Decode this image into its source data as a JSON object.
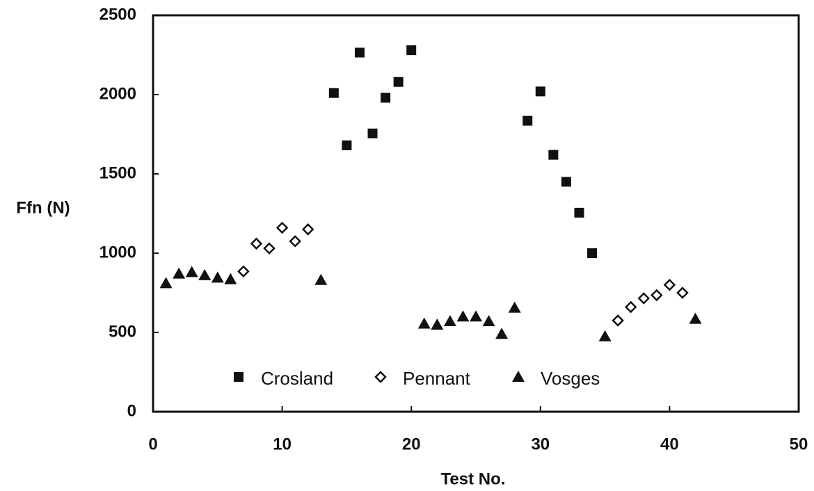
{
  "chart_data": {
    "type": "scatter",
    "xlabel": "Test No.",
    "ylabel": "Ffn (N)",
    "xlim": [
      0,
      50
    ],
    "xticks": [
      0,
      10,
      20,
      30,
      40,
      50
    ],
    "ylim": [
      0,
      2500
    ],
    "yticks": [
      0,
      500,
      1000,
      1500,
      2000,
      2500
    ],
    "legend": "bottom",
    "series": [
      {
        "name": "Crosland",
        "color": "#111111",
        "marker": "square",
        "x": [
          14,
          15,
          16,
          17,
          18,
          19,
          20,
          29,
          30,
          31,
          32,
          33,
          34
        ],
        "values": [
          2010,
          1680,
          2265,
          1755,
          1980,
          2080,
          2280,
          1835,
          2020,
          1620,
          1450,
          1255,
          1000
        ]
      },
      {
        "name": "Pennant",
        "color": "#111111",
        "marker": "diamond",
        "x": [
          7,
          8,
          9,
          10,
          11,
          12,
          36,
          37,
          38,
          39,
          40,
          41
        ],
        "values": [
          885,
          1060,
          1030,
          1160,
          1075,
          1150,
          575,
          660,
          715,
          735,
          800,
          750
        ]
      },
      {
        "name": "Vosges",
        "color": "#111111",
        "marker": "triangle",
        "x": [
          1,
          2,
          3,
          4,
          5,
          6,
          13,
          21,
          22,
          23,
          24,
          25,
          26,
          27,
          28,
          35,
          42
        ],
        "values": [
          810,
          870,
          880,
          860,
          845,
          835,
          830,
          555,
          548,
          570,
          600,
          600,
          570,
          490,
          655,
          475,
          585
        ]
      }
    ]
  }
}
